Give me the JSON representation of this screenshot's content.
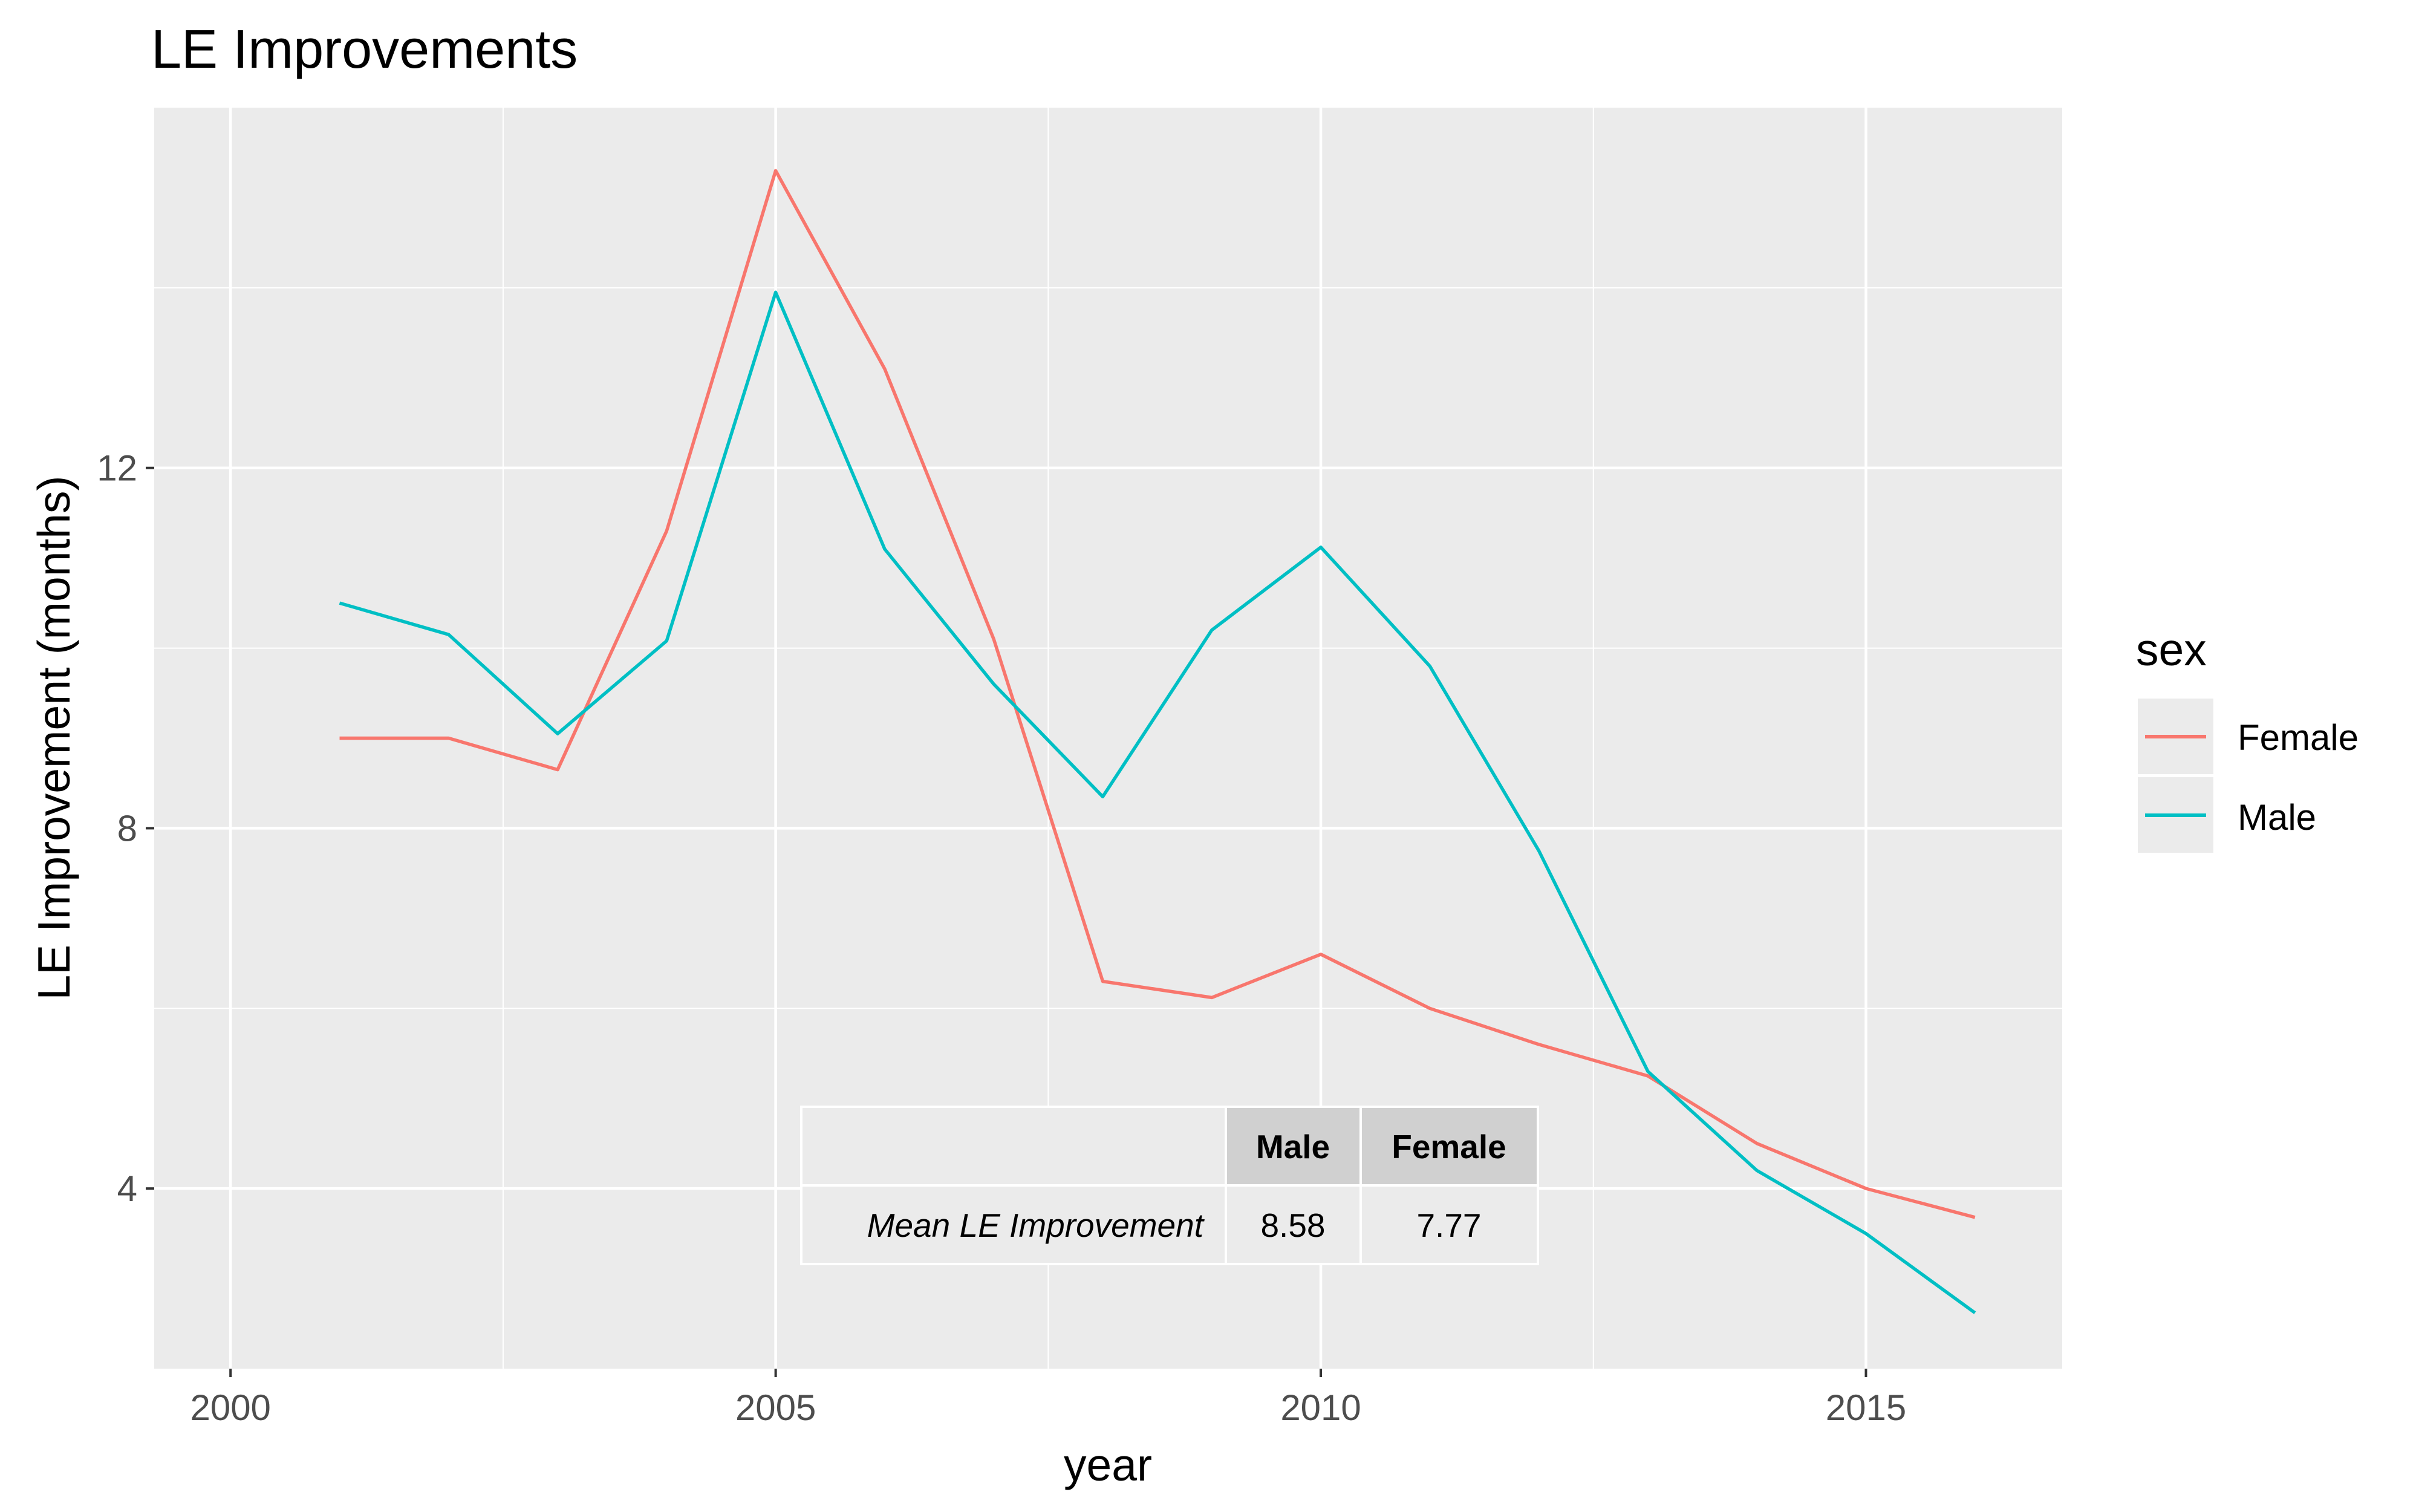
{
  "chart_data": {
    "type": "line",
    "title": "LE Improvements",
    "xlabel": "year",
    "ylabel": "LE Improvement (months)",
    "xlim": [
      1999.3,
      2016.8
    ],
    "ylim": [
      2.0,
      16.0
    ],
    "x_ticks": [
      2000,
      2005,
      2010,
      2015
    ],
    "x_minor": [
      2002.5,
      2007.5,
      2012.5
    ],
    "y_ticks": [
      4,
      8,
      12
    ],
    "y_minor": [
      6,
      10,
      14
    ],
    "grid": true,
    "legend": {
      "title": "sex",
      "position": "right"
    },
    "series": [
      {
        "name": "Female",
        "color": "#F8766D",
        "x": [
          2001,
          2002,
          2003,
          2004,
          2005,
          2006,
          2007,
          2008,
          2009,
          2010,
          2011,
          2012,
          2013,
          2014,
          2015,
          2016
        ],
        "values": [
          9.0,
          9.0,
          8.65,
          11.3,
          15.3,
          13.1,
          10.1,
          6.3,
          6.12,
          6.6,
          6.0,
          5.6,
          5.25,
          4.5,
          4.0,
          3.68
        ]
      },
      {
        "name": "Male",
        "color": "#00BFC4",
        "x": [
          2001,
          2002,
          2003,
          2004,
          2005,
          2006,
          2007,
          2008,
          2009,
          2010,
          2011,
          2012,
          2013,
          2014,
          2015,
          2016
        ],
        "values": [
          10.5,
          10.15,
          9.05,
          10.08,
          13.95,
          11.1,
          9.6,
          8.35,
          10.2,
          11.12,
          9.8,
          7.75,
          5.3,
          4.2,
          3.5,
          2.62
        ]
      }
    ]
  },
  "table": {
    "headers": [
      "Male",
      "Female"
    ],
    "row_label": "Mean LE Improvement",
    "values": [
      "8.58",
      "7.77"
    ]
  }
}
